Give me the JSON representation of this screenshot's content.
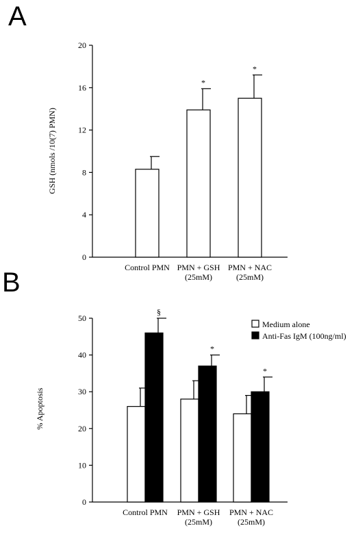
{
  "panels": [
    {
      "letter": "A"
    },
    {
      "letter": "B"
    }
  ],
  "chart_data": [
    {
      "type": "bar",
      "ylabel": "GSH (nmols /10(7) PMN)",
      "ylim": [
        0,
        20
      ],
      "yticks": [
        0,
        4,
        8,
        12,
        16,
        20
      ],
      "categories": [
        [
          "Control PMN"
        ],
        [
          "PMN + GSH",
          "(25mM)"
        ],
        [
          "PMN + NAC",
          "(25mM)"
        ]
      ],
      "series": [
        {
          "fill": "#ffffff",
          "values": [
            8.3,
            13.9,
            15.0
          ],
          "errors": [
            1.2,
            2.0,
            2.2
          ],
          "annotations": [
            "",
            "*",
            "*"
          ]
        }
      ]
    },
    {
      "type": "bar",
      "ylabel": "% Apoptosis",
      "ylim": [
        0,
        50
      ],
      "yticks": [
        0,
        10,
        20,
        30,
        40,
        50
      ],
      "categories": [
        [
          "Control PMN"
        ],
        [
          "PMN + GSH",
          "(25mM)"
        ],
        [
          "PMN + NAC",
          "(25mM)"
        ]
      ],
      "legend_position": "top-right",
      "series": [
        {
          "name": "Medium alone",
          "fill": "#ffffff",
          "values": [
            26,
            28,
            24
          ],
          "errors": [
            5,
            5,
            5
          ],
          "annotations": [
            "",
            "",
            ""
          ]
        },
        {
          "name": "Anti-Fas IgM (100ng/ml)",
          "fill": "#000000",
          "values": [
            46,
            37,
            30
          ],
          "errors": [
            4,
            3,
            4
          ],
          "annotations": [
            "§",
            "*",
            "*"
          ]
        }
      ]
    }
  ]
}
